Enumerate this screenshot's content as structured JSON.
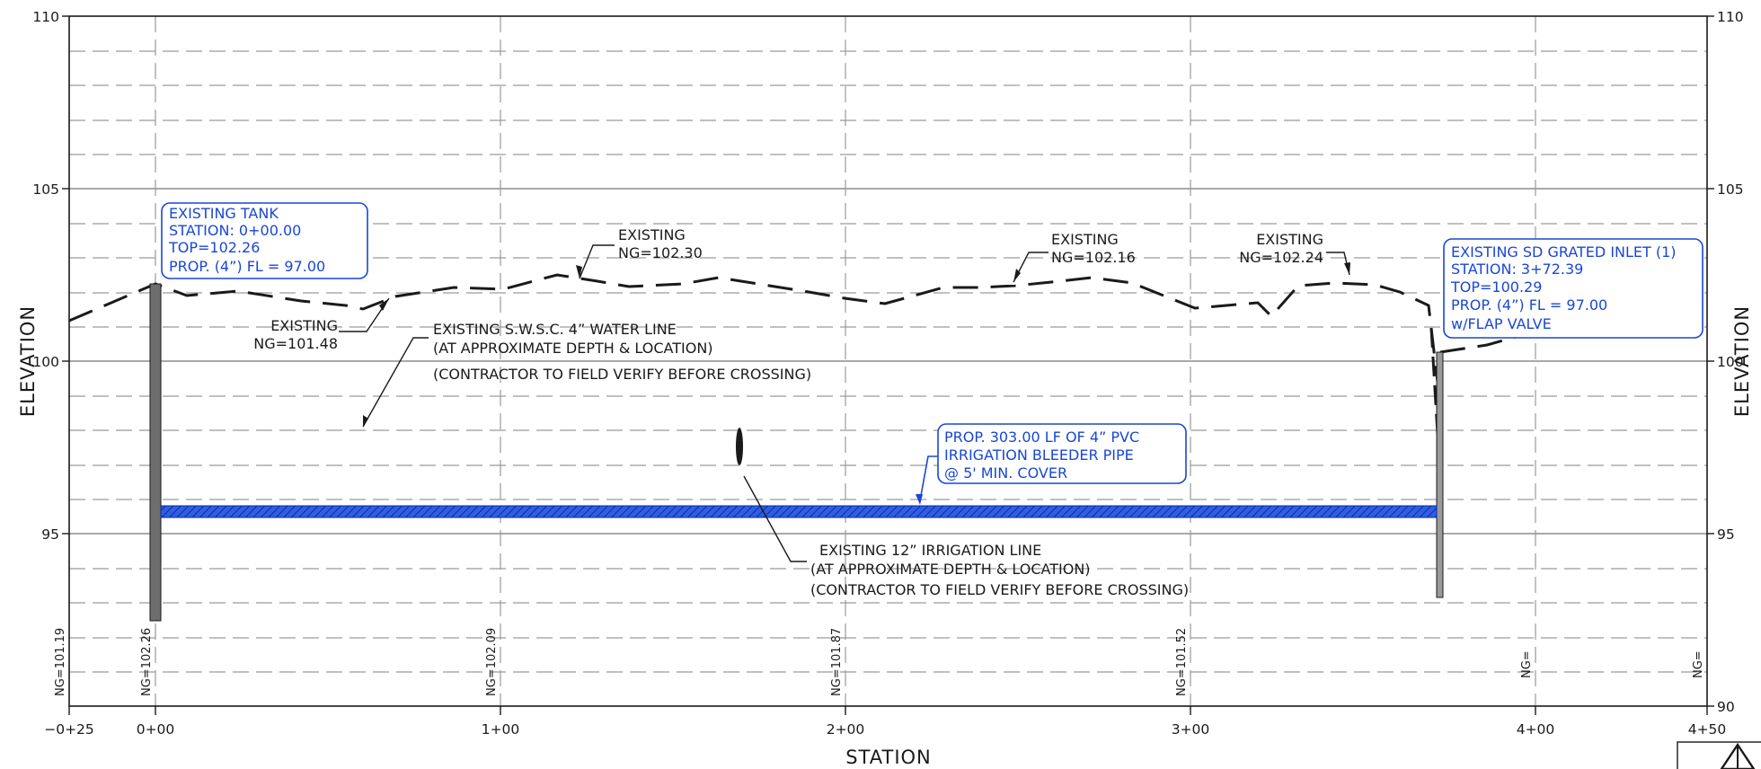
{
  "axes": {
    "x_title": "STATION",
    "y_title_left": "ELEVATION",
    "y_title_right": "ELEVATION",
    "x_ticks": [
      "−0+25",
      "0+00",
      "1+00",
      "2+00",
      "3+00",
      "4+00",
      "4+50"
    ],
    "y_ticks_left": [
      "110",
      "105",
      "100",
      "95"
    ],
    "y_ticks_right": [
      "110",
      "105",
      "100",
      "95",
      "90"
    ]
  },
  "ng_labels": [
    "NG=101.19",
    "NG=102.26",
    "NG=102.09",
    "NG=101.87",
    "NG=101.52",
    "NG=",
    "NG="
  ],
  "existing_tank": {
    "line1": "EXISTING TANK",
    "line2": "STATION: 0+00.00",
    "line3": "TOP=102.26",
    "line4": "PROP. (4”) FL = 97.00"
  },
  "sd_inlet": {
    "line1": "EXISTING SD GRATED INLET (1)",
    "line2": "STATION: 3+72.39",
    "line3": "TOP=100.29",
    "line4": "PROP. (4”) FL = 97.00",
    "line5": "w/FLAP VALVE"
  },
  "ground_callouts": [
    {
      "line1": "EXISTING",
      "line2": "NG=101.48"
    },
    {
      "line1": "EXISTING",
      "line2": "NG=102.30"
    },
    {
      "line1": "EXISTING",
      "line2": "NG=102.16"
    },
    {
      "line1": "EXISTING",
      "line2": "NG=102.24"
    }
  ],
  "water_line": {
    "line1": "EXISTING S.W.S.C. 4” WATER LINE",
    "line2": "(AT APPROXIMATE DEPTH & LOCATION)",
    "line3": "(CONTRACTOR TO FIELD VERIFY BEFORE CROSSING)"
  },
  "irrigation_line": {
    "line1": "EXISTING 12” IRRIGATION LINE",
    "line2": "(AT APPROXIMATE DEPTH & LOCATION)",
    "line3": "(CONTRACTOR TO FIELD VERIFY BEFORE CROSSING)"
  },
  "proposed_pipe": {
    "line1": "PROP. 303.00 LF OF 4” PVC",
    "line2": "IRRIGATION BLEEDER PIPE",
    "line3": "@ 5' MIN. COVER"
  },
  "colors": {
    "annotation_blue": "#1947d6",
    "linework": "#1a1a1a",
    "grid": "#9a9a9a",
    "structure_fill": "#6e6e6e"
  }
}
